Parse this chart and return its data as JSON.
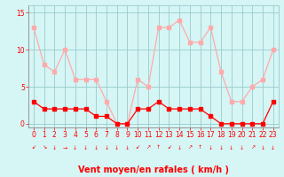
{
  "hours": [
    0,
    1,
    2,
    3,
    4,
    5,
    6,
    7,
    8,
    9,
    10,
    11,
    12,
    13,
    14,
    15,
    16,
    17,
    18,
    19,
    20,
    21,
    22,
    23
  ],
  "mean_wind": [
    3,
    2,
    2,
    2,
    2,
    2,
    1,
    1,
    0,
    0,
    2,
    2,
    3,
    2,
    2,
    2,
    2,
    1,
    0,
    0,
    0,
    0,
    0,
    3
  ],
  "gusts": [
    13,
    8,
    7,
    10,
    6,
    6,
    6,
    3,
    0,
    0,
    6,
    5,
    13,
    13,
    14,
    11,
    11,
    13,
    7,
    3,
    3,
    5,
    6,
    10
  ],
  "mean_color": "#ff0000",
  "gust_color": "#ffaaaa",
  "bg_color": "#d6f5f5",
  "grid_color": "#99cccc",
  "xlabel": "Vent moyen/en rafales ( km/h )",
  "yticks": [
    0,
    5,
    10,
    15
  ],
  "ylim": [
    -0.5,
    16
  ],
  "xlim": [
    -0.5,
    23.5
  ],
  "axis_fontsize": 7,
  "tick_fontsize": 5.5,
  "arrows": [
    "↙",
    "↘",
    "↓",
    "→",
    "↓",
    "↓",
    "↓",
    "↓",
    "↓",
    "↓",
    "↙",
    "↗",
    "↑",
    "↙",
    "↓",
    "↗",
    "↑",
    "↓",
    "↓",
    "↓",
    "↓",
    "↗",
    "↓",
    "↓"
  ]
}
